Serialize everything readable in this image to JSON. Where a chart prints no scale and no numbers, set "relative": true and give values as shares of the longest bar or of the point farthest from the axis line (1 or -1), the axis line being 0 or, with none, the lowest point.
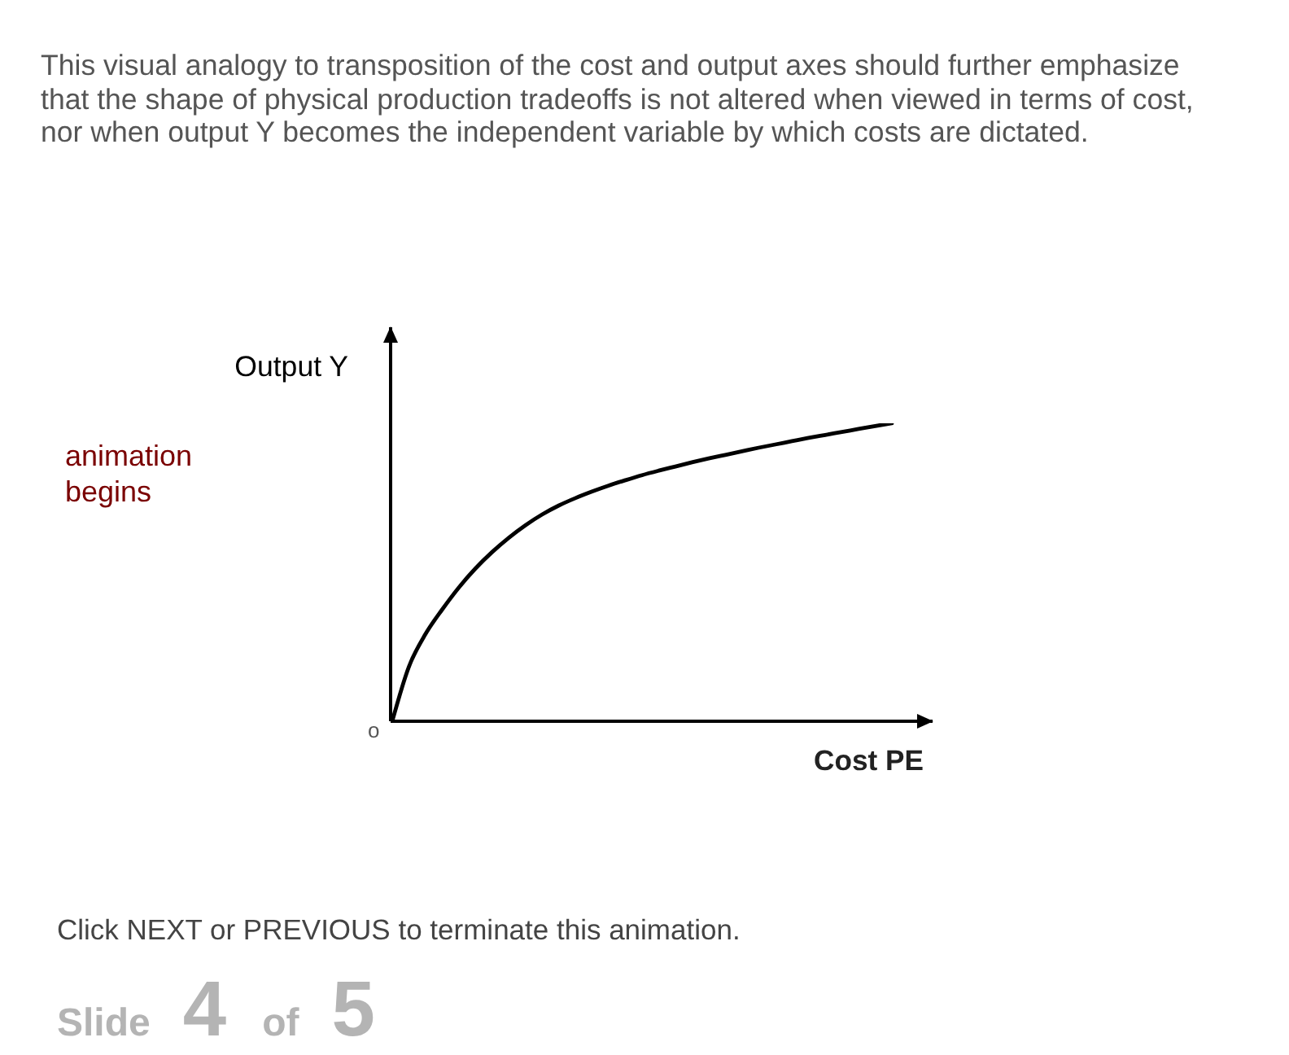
{
  "chart_data": {
    "type": "line",
    "title": "This visual analogy to transposition of the cost and output axes should further emphasize that the shape of physical production tradeoffs is not altered when viewed in terms of cost, nor when output Y becomes the independent variable by which costs are dictated.",
    "xlabel": "Cost PE",
    "ylabel": "Output Y",
    "relative": true,
    "categories": [
      null,
      null,
      null,
      null,
      null,
      null,
      null,
      null,
      null,
      null,
      null,
      null,
      null,
      null,
      null,
      null,
      null,
      null,
      null,
      null,
      null,
      null,
      null,
      null,
      null,
      null,
      null,
      null,
      null,
      null,
      null
    ],
    "series": [
      {
        "color": "#000000",
        "values": [
          0,
          0.183,
          0.293,
          0.375,
          0.449,
          0.513,
          0.568,
          0.616,
          0.658,
          0.694,
          0.724,
          0.749,
          0.771,
          0.791,
          0.809,
          0.826,
          0.841,
          0.855,
          0.869,
          0.882,
          0.894,
          0.906,
          0.918,
          0.929,
          0.94,
          0.951,
          0.961,
          0.971,
          0.981,
          0.991,
          1
        ]
      }
    ],
    "annotations": [
      "o",
      "animation begins",
      "Click NEXT or PREVIOUS to terminate this animation.",
      "Slide 4 of 5"
    ]
  }
}
